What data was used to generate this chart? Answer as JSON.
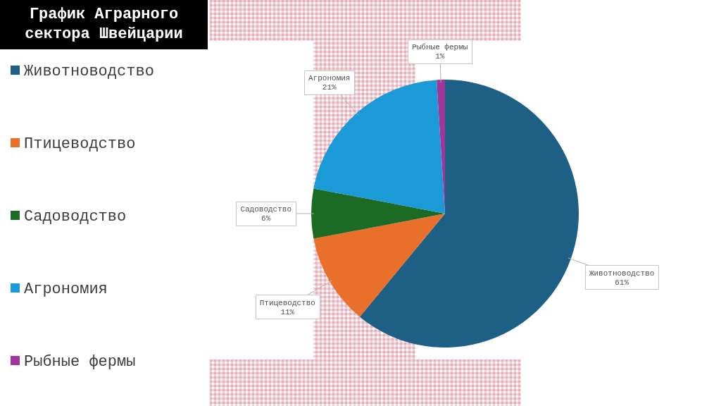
{
  "chart_data": {
    "type": "pie",
    "title": "График Аграрного сектора Швейцарии",
    "categories": [
      "Животноводство",
      "Птицеводство",
      "Садоводство",
      "Агрономия",
      "Рыбные фермы"
    ],
    "values": [
      61,
      11,
      6,
      21,
      1
    ],
    "colors": [
      "#1e5f85",
      "#e8702a",
      "#1b6b24",
      "#1a9bd7",
      "#a0369c"
    ],
    "value_labels": [
      "61%",
      "11%",
      "6%",
      "21%",
      "1%"
    ],
    "legend": "left"
  }
}
